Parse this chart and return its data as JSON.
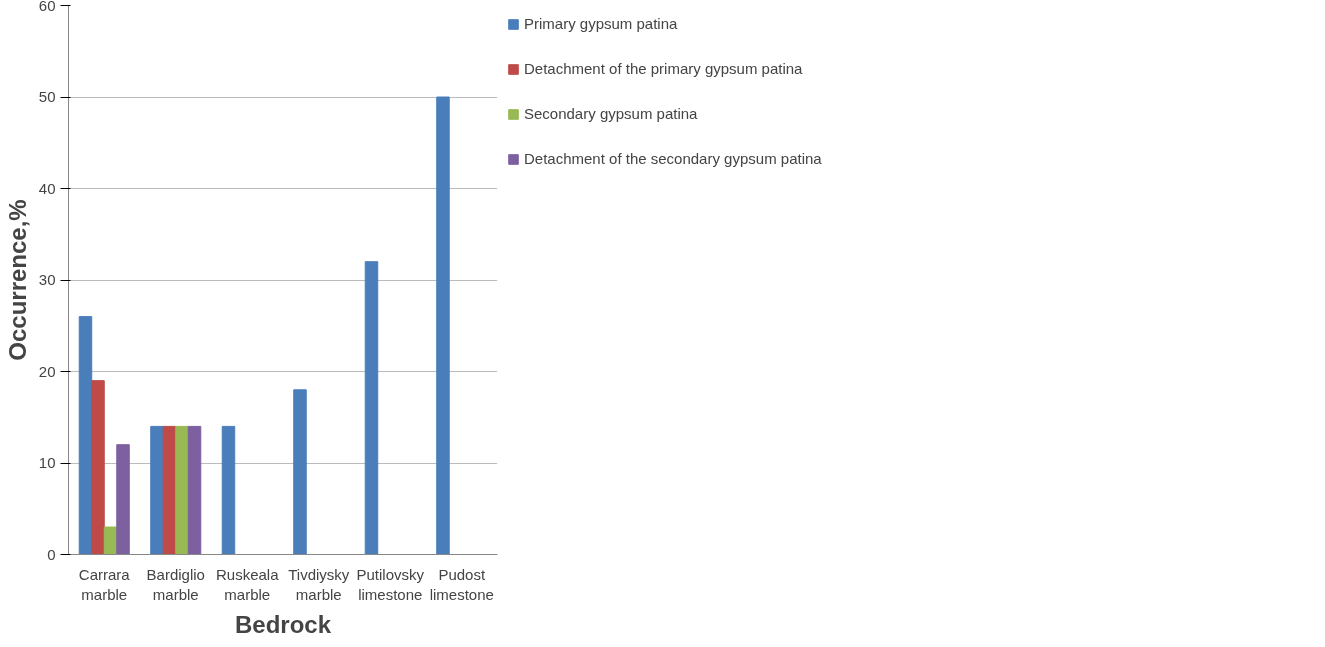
{
  "chart_data": {
    "type": "bar",
    "xlabel": "Bedrock",
    "ylabel": "Occurrence,%",
    "categories": [
      "Carrara marble",
      "Bardiglio marble",
      "Ruskeala marble",
      "Tivdiysky marble",
      "Putilovsky limestone",
      "Pudost limestone"
    ],
    "series": [
      {
        "name": "Primary gypsum patina",
        "color": "#4a7ebb",
        "values": [
          26,
          14,
          14,
          18,
          32,
          50
        ]
      },
      {
        "name": "Detachment of the primary gypsum patina",
        "color": "#be4b48",
        "values": [
          19,
          14,
          null,
          null,
          null,
          null
        ]
      },
      {
        "name": "Secondary gypsum patina",
        "color": "#98b954",
        "values": [
          3,
          14,
          null,
          null,
          null,
          null
        ]
      },
      {
        "name": "Detachment of the secondary gypsum patina",
        "color": "#7d60a0",
        "values": [
          12,
          14,
          null,
          null,
          null,
          null
        ]
      }
    ],
    "ylim": [
      0,
      60
    ],
    "yticks": [
      0,
      10,
      20,
      30,
      40,
      50,
      60
    ],
    "grid": "y",
    "legend": "right"
  }
}
